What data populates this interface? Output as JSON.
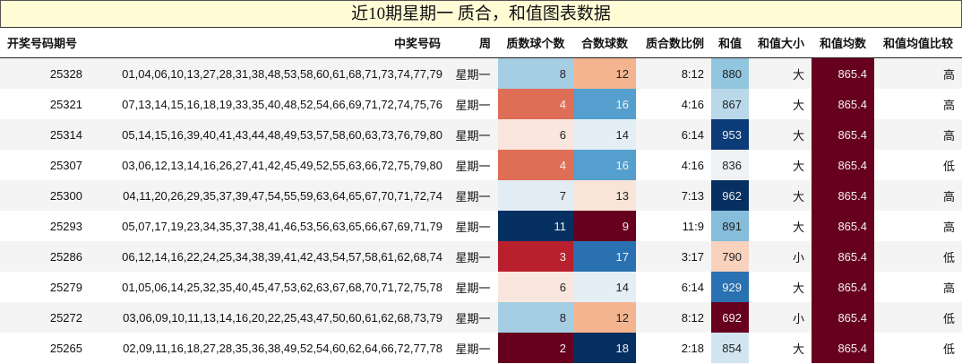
{
  "title": "近10期星期一 质合，和值图表数据",
  "headers": {
    "period": "开奖号码期号",
    "numbers": "中奖号码",
    "weekday": "周",
    "prime_count": "质数球个数",
    "composite_count": "合数球数",
    "ratio": "质合数比例",
    "sum": "和值",
    "sum_size": "和值大小",
    "sum_avg": "和值均数",
    "sum_avg_compare": "和值均值比较"
  },
  "colors": {
    "avg_cell": "#67001f",
    "text_light": "#f0f0f0",
    "text_dark": "#222222"
  },
  "rows": [
    {
      "period": "25328",
      "numbers": "01,04,06,10,13,27,28,31,38,48,53,58,60,61,68,71,73,74,77,79",
      "weekday": "星期一",
      "prime_count": "8",
      "prime_bg": "#a6cee3",
      "composite_count": "12",
      "composite_bg": "#f4b48f",
      "ratio": "8:12",
      "sum": "880",
      "sum_bg": "#92c5de",
      "sum_size": "大",
      "sum_avg": "865.4",
      "sum_avg_compare": "高"
    },
    {
      "period": "25321",
      "numbers": "07,13,14,15,16,18,19,33,35,40,48,52,54,66,69,71,72,74,75,76",
      "weekday": "星期一",
      "prime_count": "4",
      "prime_bg": "#de6e56",
      "composite_count": "16",
      "composite_bg": "#549fcd",
      "ratio": "4:16",
      "sum": "867",
      "sum_bg": "#b9d9ea",
      "sum_size": "大",
      "sum_avg": "865.4",
      "sum_avg_compare": "高"
    },
    {
      "period": "25314",
      "numbers": "05,14,15,16,39,40,41,43,44,48,49,53,57,58,60,63,73,76,79,80",
      "weekday": "星期一",
      "prime_count": "6",
      "prime_bg": "#f9e6de",
      "composite_count": "14",
      "composite_bg": "#e4eef5",
      "ratio": "6:14",
      "sum": "953",
      "sum_bg": "#0c3c78",
      "sum_size": "大",
      "sum_avg": "865.4",
      "sum_avg_compare": "高"
    },
    {
      "period": "25307",
      "numbers": "03,06,12,13,14,16,26,27,41,42,45,49,52,55,63,66,72,75,79,80",
      "weekday": "星期一",
      "prime_count": "4",
      "prime_bg": "#de6e56",
      "composite_count": "16",
      "composite_bg": "#549fcd",
      "ratio": "4:16",
      "sum": "836",
      "sum_bg": "#eef2f5",
      "sum_size": "大",
      "sum_avg": "865.4",
      "sum_avg_compare": "低"
    },
    {
      "period": "25300",
      "numbers": "04,11,20,26,29,35,37,39,47,54,55,59,63,64,65,67,70,71,72,74",
      "weekday": "星期一",
      "prime_count": "7",
      "prime_bg": "#e1ecf5",
      "composite_count": "13",
      "composite_bg": "#f9e4d8",
      "ratio": "7:13",
      "sum": "962",
      "sum_bg": "#053061",
      "sum_size": "大",
      "sum_avg": "865.4",
      "sum_avg_compare": "高"
    },
    {
      "period": "25293",
      "numbers": "05,07,17,19,23,34,35,37,38,41,46,53,56,63,65,66,67,69,71,79",
      "weekday": "星期一",
      "prime_count": "11",
      "prime_bg": "#053061",
      "composite_count": "9",
      "composite_bg": "#67001f",
      "ratio": "11:9",
      "sum": "891",
      "sum_bg": "#86bddb",
      "sum_size": "大",
      "sum_avg": "865.4",
      "sum_avg_compare": "高"
    },
    {
      "period": "25286",
      "numbers": "06,12,14,16,22,24,25,34,38,39,41,42,43,54,57,58,61,62,68,74",
      "weekday": "星期一",
      "prime_count": "3",
      "prime_bg": "#b8202e",
      "composite_count": "17",
      "composite_bg": "#2a71b2",
      "ratio": "3:17",
      "sum": "790",
      "sum_bg": "#f8d2bd",
      "sum_size": "小",
      "sum_avg": "865.4",
      "sum_avg_compare": "低"
    },
    {
      "period": "25279",
      "numbers": "01,05,06,14,25,32,35,40,45,47,53,62,63,67,68,70,71,72,75,78",
      "weekday": "星期一",
      "prime_count": "6",
      "prime_bg": "#f9e6de",
      "composite_count": "14",
      "composite_bg": "#e4eef5",
      "ratio": "6:14",
      "sum": "929",
      "sum_bg": "#2a71b2",
      "sum_size": "大",
      "sum_avg": "865.4",
      "sum_avg_compare": "高"
    },
    {
      "period": "25272",
      "numbers": "03,06,09,10,11,13,14,16,20,22,25,43,47,50,60,61,62,68,73,79",
      "weekday": "星期一",
      "prime_count": "8",
      "prime_bg": "#a6cee3",
      "composite_count": "12",
      "composite_bg": "#f4b48f",
      "ratio": "8:12",
      "sum": "692",
      "sum_bg": "#67001f",
      "sum_size": "小",
      "sum_avg": "865.4",
      "sum_avg_compare": "低"
    },
    {
      "period": "25265",
      "numbers": "02,09,11,16,18,27,28,35,36,38,49,52,54,60,62,64,66,72,77,78",
      "weekday": "星期一",
      "prime_count": "2",
      "prime_bg": "#67001f",
      "composite_count": "18",
      "composite_bg": "#053061",
      "ratio": "2:18",
      "sum": "854",
      "sum_bg": "#d1e5f0",
      "sum_size": "大",
      "sum_avg": "865.4",
      "sum_avg_compare": "低"
    }
  ]
}
